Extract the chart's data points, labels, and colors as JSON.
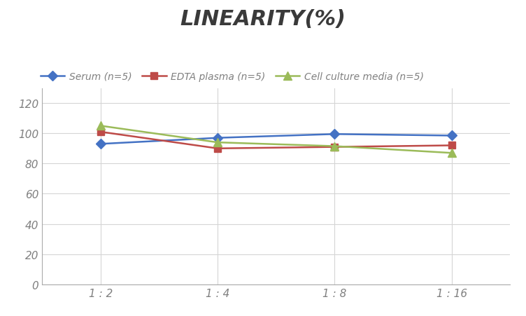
{
  "title": "LINEARITY(%)",
  "title_fontsize": 22,
  "title_fontstyle": "italic",
  "title_fontweight": "bold",
  "title_color": "#3a3a3a",
  "x_labels": [
    "1 : 2",
    "1 : 4",
    "1 : 8",
    "1 : 16"
  ],
  "x_positions": [
    0,
    1,
    2,
    3
  ],
  "ylim": [
    0,
    130
  ],
  "yticks": [
    0,
    20,
    40,
    60,
    80,
    100,
    120
  ],
  "series": [
    {
      "label": "Serum (n=5)",
      "values": [
        93,
        97,
        99.5,
        98.5
      ],
      "color": "#4472C4",
      "marker": "D",
      "markersize": 7,
      "linewidth": 1.8
    },
    {
      "label": "EDTA plasma (n=5)",
      "values": [
        101,
        90,
        91,
        92
      ],
      "color": "#BE4B48",
      "marker": "s",
      "markersize": 7,
      "linewidth": 1.8
    },
    {
      "label": "Cell culture media (n=5)",
      "values": [
        105,
        94,
        91.5,
        87
      ],
      "color": "#9BBB59",
      "marker": "^",
      "markersize": 8,
      "linewidth": 1.8
    }
  ],
  "legend_fontsize": 10,
  "legend_fontstyle": "italic",
  "tick_fontsize": 11,
  "tick_fontstyle": "italic",
  "tick_color": "#808080",
  "background_color": "#ffffff",
  "grid_color": "#d5d5d5",
  "spine_color": "#aaaaaa"
}
